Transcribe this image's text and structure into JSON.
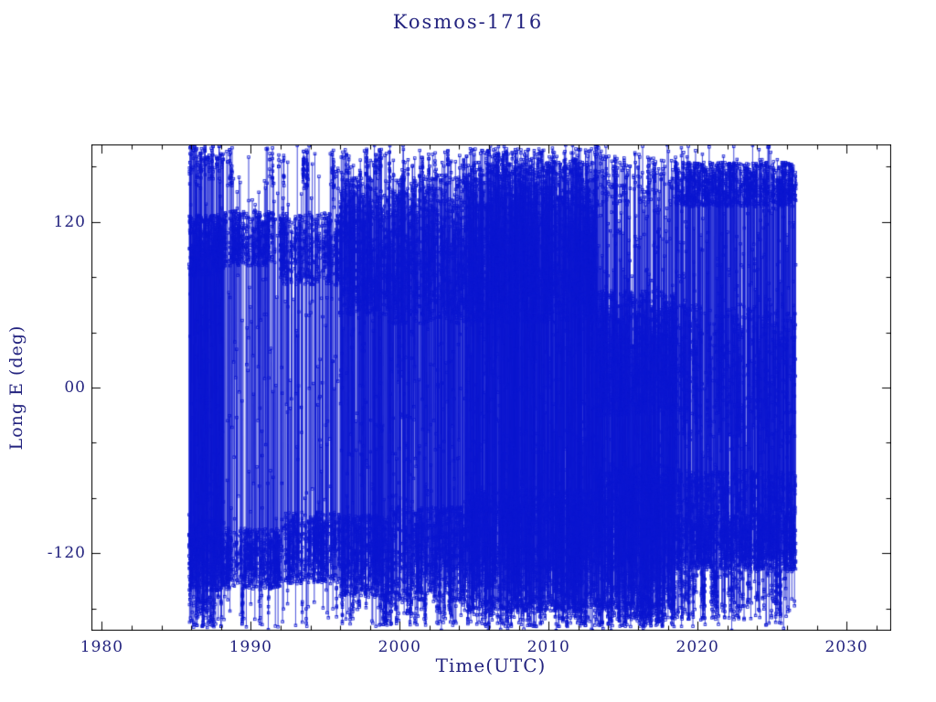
{
  "page": {
    "background": "#ffffff"
  },
  "chart_data": {
    "type": "scatter",
    "title": "Kosmos-1716",
    "xlabel": "Time(UTC)",
    "ylabel": "Long E (deg)",
    "xlim": [
      1979.3,
      2033.0
    ],
    "ylim": [
      -176,
      176
    ],
    "xticks": [
      {
        "v": 1980,
        "label": "1980"
      },
      {
        "v": 1990,
        "label": "1990"
      },
      {
        "v": 2000,
        "label": "2000"
      },
      {
        "v": 2010,
        "label": "2010"
      },
      {
        "v": 2020,
        "label": "2020"
      },
      {
        "v": 2030,
        "label": "2030"
      }
    ],
    "yticks": [
      {
        "v": -120,
        "label": "-120"
      },
      {
        "v": 0,
        "label": "00"
      },
      {
        "v": 120,
        "label": "120"
      }
    ],
    "x_minor_step": 2,
    "y_minor_step": 40,
    "grid": false,
    "legend": null,
    "marker": "open-square",
    "line_connect": true,
    "data_color": "#0b16d0",
    "axis_color": "#000000",
    "text_color": "#23237f",
    "seed": 1716,
    "data_start": 1985.85,
    "data_end": 2026.6,
    "epochs": [
      {
        "t0": 1985.85,
        "t1": 1988.2,
        "points_per_year": 470,
        "band_switch_prob": 0.55,
        "uniform_frac": 0.14,
        "bands": [
          {
            "center": 103,
            "halfwidth": 22,
            "weight": 0.4
          },
          {
            "center": -122,
            "halfwidth": 26,
            "weight": 0.4
          },
          {
            "center": 163,
            "halfwidth": 12,
            "weight": 0.1
          },
          {
            "center": -162,
            "halfwidth": 12,
            "weight": 0.1
          }
        ]
      },
      {
        "t0": 1988.2,
        "t1": 1992.0,
        "points_per_year": 300,
        "band_switch_prob": 0.16,
        "uniform_frac": 0.1,
        "bands": [
          {
            "center": 108,
            "halfwidth": 20,
            "weight": 0.45
          },
          {
            "center": -124,
            "halfwidth": 22,
            "weight": 0.45
          },
          {
            "center": 160,
            "halfwidth": 14,
            "weight": 0.05
          },
          {
            "center": -158,
            "halfwidth": 14,
            "weight": 0.05
          }
        ]
      },
      {
        "t0": 1992.0,
        "t1": 1996.0,
        "points_per_year": 300,
        "band_switch_prob": 0.14,
        "uniform_frac": 0.11,
        "bands": [
          {
            "center": 100,
            "halfwidth": 26,
            "weight": 0.45
          },
          {
            "center": -116,
            "halfwidth": 26,
            "weight": 0.45
          },
          {
            "center": 158,
            "halfwidth": 14,
            "weight": 0.05
          },
          {
            "center": -158,
            "halfwidth": 14,
            "weight": 0.05
          }
        ]
      },
      {
        "t0": 1996.0,
        "t1": 1999.2,
        "points_per_year": 430,
        "band_switch_prob": 0.3,
        "uniform_frac": 0.12,
        "bands": [
          {
            "center": 102,
            "halfwidth": 50,
            "weight": 0.48
          },
          {
            "center": -122,
            "halfwidth": 30,
            "weight": 0.4
          },
          {
            "center": 163,
            "halfwidth": 10,
            "weight": 0.06
          },
          {
            "center": -160,
            "halfwidth": 12,
            "weight": 0.06
          }
        ]
      },
      {
        "t0": 1999.2,
        "t1": 2004.6,
        "points_per_year": 400,
        "band_switch_prob": 0.32,
        "uniform_frac": 0.14,
        "bands": [
          {
            "center": 100,
            "halfwidth": 54,
            "weight": 0.48
          },
          {
            "center": -120,
            "halfwidth": 34,
            "weight": 0.4
          },
          {
            "center": 160,
            "halfwidth": 12,
            "weight": 0.06
          },
          {
            "center": -160,
            "halfwidth": 12,
            "weight": 0.06
          }
        ]
      },
      {
        "t0": 2004.6,
        "t1": 2013.2,
        "points_per_year": 540,
        "band_switch_prob": 0.42,
        "uniform_frac": 0.17,
        "bands": [
          {
            "center": 105,
            "halfwidth": 58,
            "weight": 0.46
          },
          {
            "center": -118,
            "halfwidth": 44,
            "weight": 0.42
          },
          {
            "center": 163,
            "halfwidth": 10,
            "weight": 0.06
          },
          {
            "center": -163,
            "halfwidth": 10,
            "weight": 0.06
          }
        ]
      },
      {
        "t0": 2013.2,
        "t1": 2018.5,
        "points_per_year": 520,
        "band_switch_prob": 0.4,
        "uniform_frac": 0.15,
        "bands": [
          {
            "center": 25,
            "halfwidth": 45,
            "weight": 0.34
          },
          {
            "center": -108,
            "halfwidth": 52,
            "weight": 0.44
          },
          {
            "center": 150,
            "halfwidth": 18,
            "weight": 0.08
          },
          {
            "center": -163,
            "halfwidth": 10,
            "weight": 0.14
          }
        ]
      },
      {
        "t0": 2018.5,
        "t1": 2026.6,
        "points_per_year": 500,
        "band_switch_prob": 0.25,
        "uniform_frac": 0.12,
        "bands": [
          {
            "center": 147,
            "halfwidth": 16,
            "weight": 0.3
          },
          {
            "center": -112,
            "halfwidth": 20,
            "weight": 0.36
          },
          {
            "center": -76,
            "halfwidth": 16,
            "weight": 0.14
          },
          {
            "center": 12,
            "halfwidth": 48,
            "weight": 0.12
          },
          {
            "center": -150,
            "halfwidth": 18,
            "weight": 0.08
          }
        ]
      }
    ]
  }
}
